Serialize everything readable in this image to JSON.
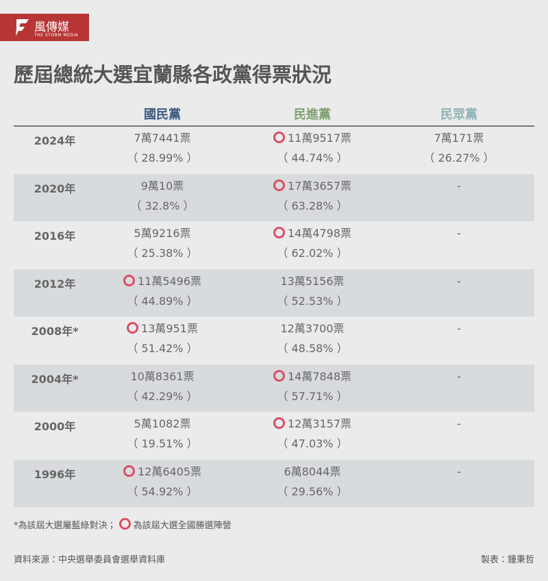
{
  "logo": {
    "name": "風傳媒",
    "tagline": "THE STORM MEDIA"
  },
  "title": "歷屆總統大選宜蘭縣各政黨得票狀況",
  "table": {
    "columns": [
      "國民黨",
      "民進黨",
      "民眾黨"
    ],
    "rows": [
      {
        "year": "2024年",
        "winner": 1,
        "cells": [
          [
            "7萬7441票",
            "（ 28.99% ）"
          ],
          [
            "11萬9517票",
            "（ 44.74% ）"
          ],
          [
            "7萬171票",
            "（ 26.27% ）"
          ]
        ]
      },
      {
        "year": "2020年",
        "winner": 1,
        "cells": [
          [
            "9萬10票",
            "（ 32.8% ）"
          ],
          [
            "17萬3657票",
            "（ 63.28% ）"
          ],
          [
            "-"
          ]
        ]
      },
      {
        "year": "2016年",
        "winner": 1,
        "cells": [
          [
            "5萬9216票",
            "（ 25.38% ）"
          ],
          [
            "14萬4798票",
            "（ 62.02% ）"
          ],
          [
            "-"
          ]
        ]
      },
      {
        "year": "2012年",
        "winner": 0,
        "cells": [
          [
            "11萬5496票",
            "（ 44.89% ）"
          ],
          [
            "13萬5156票",
            "（ 52.53% ）"
          ],
          [
            "-"
          ]
        ]
      },
      {
        "year": "2008年*",
        "winner": 0,
        "cells": [
          [
            "13萬951票",
            "（ 51.42% ）"
          ],
          [
            "12萬3700票",
            "（ 48.58% ）"
          ],
          [
            "-"
          ]
        ]
      },
      {
        "year": "2004年*",
        "winner": 1,
        "cells": [
          [
            "10萬8361票",
            "（ 42.29% ）"
          ],
          [
            "14萬7848票",
            "（ 57.71% ）"
          ],
          [
            "-"
          ]
        ]
      },
      {
        "year": "2000年",
        "winner": 1,
        "cells": [
          [
            "5萬1082票",
            "（ 19.51% ）"
          ],
          [
            "12萬3157票",
            "（ 47.03% ）"
          ],
          [
            "-"
          ]
        ]
      },
      {
        "year": "1996年",
        "winner": 0,
        "cells": [
          [
            "12萬6405票",
            "（ 54.92% ）"
          ],
          [
            "6萬8044票",
            "（ 29.56% ）"
          ],
          [
            "-"
          ]
        ]
      }
    ]
  },
  "note": {
    "before": "*為該屆大選屬藍綠對決；",
    "after": "為該屆大選全國勝選陣營"
  },
  "source": "資料來源：中央選舉委員會選舉資料庫",
  "author": "製表：鍾秉哲"
}
